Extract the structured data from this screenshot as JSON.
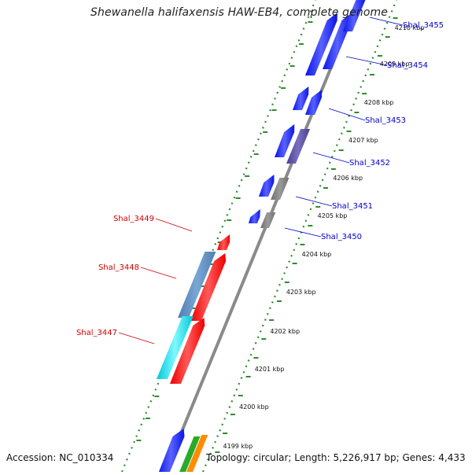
{
  "title": "Shewanella halifaxensis HAW-EB4, complete genome",
  "accession": "Accession: NC_010334",
  "summary": "Topology: circular; Length: 5,226,917 bp; Genes: 4,433",
  "colors": {
    "backbone": "#8a8a8a",
    "dotted_track": "#2e8b2e",
    "forward_label": "#0000cc",
    "reverse_label": "#cc0000",
    "blue": "#0a14e6",
    "red": "#ee0000",
    "grey": "#6e6e6e",
    "indigo": "#4a3f8f",
    "steel": "#4f7fb0",
    "cyan": "#00e5f0",
    "green": "#2aaa2a",
    "orange": "#ff8c00"
  },
  "ticks": [
    "4199 kbp",
    "4200 kbp",
    "4201 kbp",
    "4202 kbp",
    "4203 kbp",
    "4204 kbp",
    "4205 kbp",
    "4206 kbp",
    "4207 kbp",
    "4208 kbp",
    "4209 kbp",
    "4210 kbp"
  ],
  "genes_forward": [
    {
      "label": "Shal_3455",
      "color": "blue"
    },
    {
      "label": "Shal_3454",
      "color": "blue"
    },
    {
      "label": "Shal_3453",
      "color": "blue"
    },
    {
      "label": "Shal_3452",
      "color": "indigo"
    },
    {
      "label": "Shal_3451",
      "color": "grey"
    },
    {
      "label": "Shal_3450",
      "color": "grey"
    }
  ],
  "genes_reverse": [
    {
      "label": "Shal_3449",
      "color": "red"
    },
    {
      "label": "Shal_3448",
      "color": "steel"
    },
    {
      "label": "Shal_3447",
      "color": "cyan"
    }
  ]
}
